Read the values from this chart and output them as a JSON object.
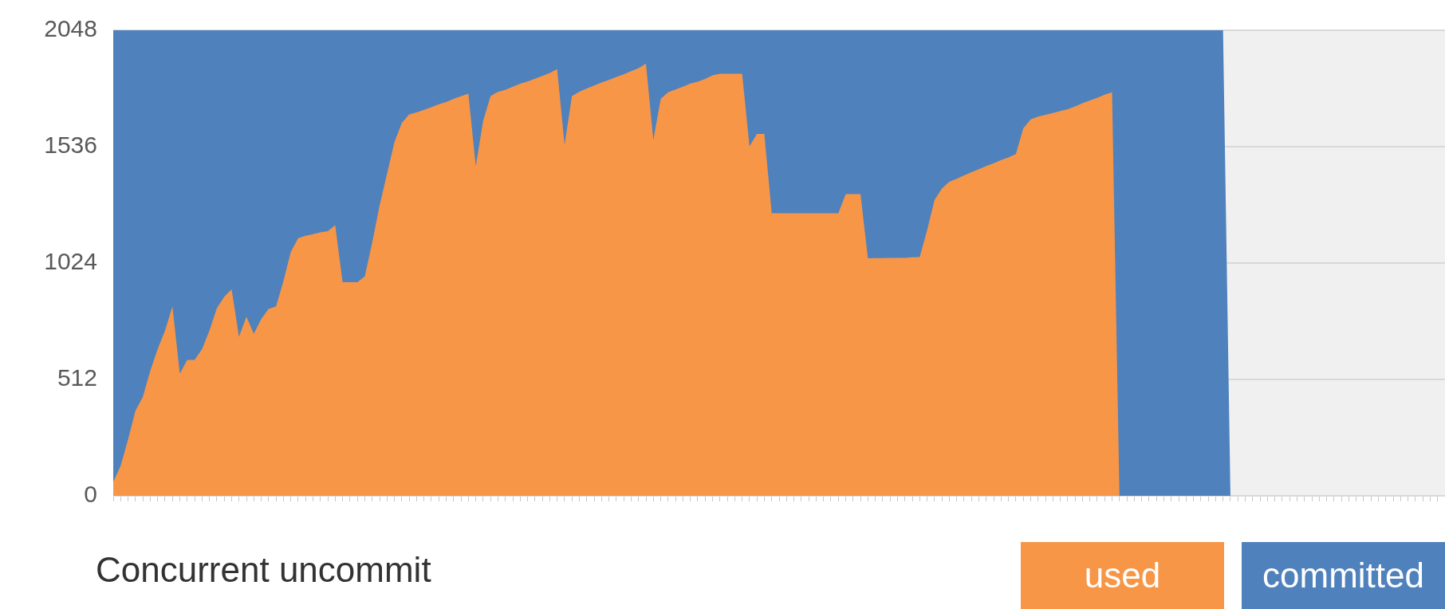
{
  "chart_data": {
    "type": "area",
    "title": "Concurrent uncommit",
    "categories": [
      null,
      null,
      null,
      null,
      null,
      null,
      null,
      null,
      null,
      null,
      null,
      null,
      null,
      null,
      null,
      null,
      null,
      null,
      null,
      null,
      null,
      null,
      null,
      null,
      null,
      null,
      null,
      null,
      null,
      null,
      null,
      null,
      null,
      null,
      null,
      null,
      null,
      null,
      null,
      null,
      null,
      null,
      null,
      null,
      null,
      null,
      null,
      null,
      null,
      null,
      null,
      null,
      null,
      null,
      null,
      null,
      null,
      null,
      null,
      null,
      null,
      null,
      null,
      null,
      null,
      null,
      null,
      null,
      null,
      null,
      null,
      null,
      null,
      null,
      null,
      null,
      null,
      null,
      null,
      null,
      null,
      null,
      null,
      null,
      null,
      null,
      null,
      null,
      null,
      null,
      null,
      null,
      null,
      null,
      null,
      null,
      null,
      null,
      null,
      null,
      null,
      null,
      null,
      null,
      null,
      null,
      null,
      null,
      null,
      null,
      null,
      null,
      null,
      null,
      null,
      null,
      null,
      null,
      null,
      null,
      null,
      null,
      null,
      null,
      null,
      null,
      null,
      null,
      null,
      null,
      null,
      null,
      null,
      null,
      null,
      null,
      null,
      null,
      null,
      null,
      null,
      null,
      null,
      null,
      null,
      null,
      null,
      null,
      null,
      null,
      null,
      null,
      null,
      null,
      null,
      null,
      null,
      null,
      null,
      null,
      null,
      null,
      null,
      null,
      null,
      null,
      null,
      null,
      null,
      null,
      null,
      null,
      null,
      null,
      null,
      null,
      null,
      null,
      null,
      null,
      null
    ],
    "series": [
      {
        "name": "used",
        "color": "#f79646",
        "values": [
          61,
          132,
          247,
          374,
          435,
          550,
          645,
          727,
          833,
          537,
          598,
          598,
          645,
          727,
          825,
          876,
          908,
          700,
          788,
          713,
          778,
          822,
          833,
          944,
          1073,
          1134,
          1144,
          1151,
          1159,
          1164,
          1191,
          940,
          940,
          940,
          965,
          1114,
          1277,
          1416,
          1555,
          1640,
          1678,
          1687,
          1698,
          1710,
          1723,
          1732,
          1746,
          1758,
          1769,
          1450,
          1650,
          1759,
          1777,
          1786,
          1800,
          1813,
          1823,
          1835,
          1847,
          1860,
          1877,
          1545,
          1759,
          1778,
          1792,
          1805,
          1818,
          1830,
          1843,
          1854,
          1868,
          1881,
          1902,
          1566,
          1746,
          1775,
          1788,
          1800,
          1814,
          1822,
          1834,
          1850,
          1857,
          1857,
          1857,
          1857,
          1538,
          1592,
          1592,
          1243,
          1243,
          1243,
          1243,
          1243,
          1243,
          1243,
          1243,
          1243,
          1243,
          1327,
          1327,
          1327,
          1045,
          1046,
          1046,
          1047,
          1047,
          1047,
          1049,
          1050,
          1168,
          1301,
          1352,
          1382,
          1395,
          1410,
          1424,
          1437,
          1451,
          1463,
          1477,
          1489,
          1504,
          1617,
          1656,
          1668,
          1676,
          1684,
          1693,
          1701,
          1713,
          1727,
          1739,
          1751,
          1765,
          1775,
          0,
          0,
          0,
          0,
          0,
          0,
          0,
          0,
          0,
          0,
          0,
          0,
          0,
          0,
          0,
          0,
          null,
          null,
          null,
          null,
          null,
          null,
          null,
          null,
          null,
          null,
          null,
          null,
          null,
          null,
          null,
          null,
          null,
          null,
          null,
          null,
          null,
          null,
          null,
          null,
          null,
          null,
          null,
          null,
          null
        ]
      },
      {
        "name": "committed",
        "color": "#4f81bd",
        "values": [
          2048,
          2048,
          2048,
          2048,
          2048,
          2048,
          2048,
          2048,
          2048,
          2048,
          2048,
          2048,
          2048,
          2048,
          2048,
          2048,
          2048,
          2048,
          2048,
          2048,
          2048,
          2048,
          2048,
          2048,
          2048,
          2048,
          2048,
          2048,
          2048,
          2048,
          2048,
          2048,
          2048,
          2048,
          2048,
          2048,
          2048,
          2048,
          2048,
          2048,
          2048,
          2048,
          2048,
          2048,
          2048,
          2048,
          2048,
          2048,
          2048,
          2048,
          2048,
          2048,
          2048,
          2048,
          2048,
          2048,
          2048,
          2048,
          2048,
          2048,
          2048,
          2048,
          2048,
          2048,
          2048,
          2048,
          2048,
          2048,
          2048,
          2048,
          2048,
          2048,
          2048,
          2048,
          2048,
          2048,
          2048,
          2048,
          2048,
          2048,
          2048,
          2048,
          2048,
          2048,
          2048,
          2048,
          2048,
          2048,
          2048,
          2048,
          2048,
          2048,
          2048,
          2048,
          2048,
          2048,
          2048,
          2048,
          2048,
          2048,
          2048,
          2048,
          2048,
          2048,
          2048,
          2048,
          2048,
          2048,
          2048,
          2048,
          2048,
          2048,
          2048,
          2048,
          2048,
          2048,
          2048,
          2048,
          2048,
          2048,
          2048,
          2048,
          2048,
          2048,
          2048,
          2048,
          2048,
          2048,
          2048,
          2048,
          2048,
          2048,
          2048,
          2048,
          2048,
          2048,
          2048,
          2048,
          2048,
          2048,
          2048,
          2048,
          2048,
          2048,
          2048,
          2048,
          2048,
          2048,
          2048,
          2048,
          2048,
          0,
          null,
          null,
          null,
          null,
          null,
          null,
          null,
          null,
          null,
          null,
          null,
          null,
          null,
          null,
          null,
          null,
          null,
          null,
          null,
          null,
          null,
          null,
          null,
          null,
          null,
          null,
          null,
          null,
          null
        ]
      }
    ],
    "ylim": [
      0,
      2048
    ],
    "yticks": [
      0,
      512,
      1024,
      1536,
      2048
    ],
    "grid": "y",
    "tick_labels": "y",
    "legend": "bottom right"
  }
}
